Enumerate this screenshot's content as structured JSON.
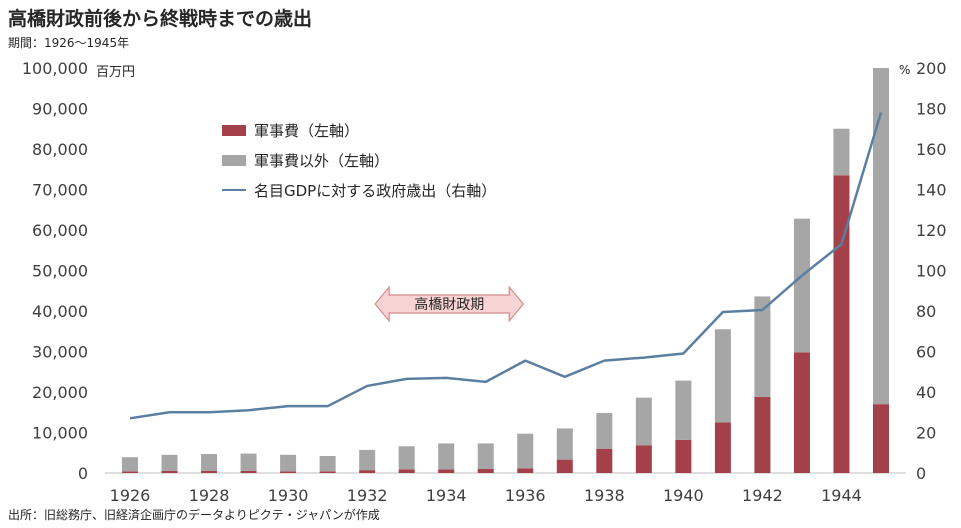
{
  "header": {
    "title": "高橋財政前後から終戦時までの歳出",
    "period": "期間：1926〜1945年"
  },
  "footer": {
    "source": "出所：旧総務庁、旧経済企画庁のデータよりピクテ・ジャパンが作成"
  },
  "colors": {
    "military": "#a4404a",
    "non_military": "#a6a6a6",
    "gdp_line": "#5b7fa1",
    "arrow_fill": "#f8d3d3",
    "arrow_stroke": "#d58a8a"
  },
  "chart_data": {
    "type": "bar",
    "stacked": true,
    "x": [
      1926,
      1927,
      1928,
      1929,
      1930,
      1931,
      1932,
      1933,
      1934,
      1935,
      1936,
      1937,
      1938,
      1939,
      1940,
      1941,
      1942,
      1943,
      1944,
      1945
    ],
    "x_tick_labels": [
      "1926",
      "1928",
      "1930",
      "1932",
      "1934",
      "1936",
      "1938",
      "1940",
      "1942",
      "1944"
    ],
    "y_left_unit": "百万円",
    "y_right_unit": "%",
    "ylim_left": [
      0,
      100000
    ],
    "ylim_right": [
      0,
      200
    ],
    "y_left_ticks": [
      "0",
      "10,000",
      "20,000",
      "30,000",
      "40,000",
      "50,000",
      "60,000",
      "70,000",
      "80,000",
      "90,000",
      "100,000"
    ],
    "y_right_ticks": [
      "0",
      "20",
      "40",
      "60",
      "80",
      "100",
      "120",
      "140",
      "160",
      "180",
      "200"
    ],
    "series": [
      {
        "name": "軍事費（左軸）",
        "kind": "bar",
        "axis": "left",
        "values": [
          400,
          500,
          500,
          500,
          400,
          400,
          700,
          900,
          900,
          1000,
          1100,
          3300,
          6000,
          6800,
          8200,
          12500,
          18800,
          29800,
          73500,
          17000
        ]
      },
      {
        "name": "軍事費以外（左軸）",
        "kind": "bar",
        "axis": "left",
        "values": [
          3500,
          4000,
          4200,
          4300,
          4100,
          3800,
          5000,
          5700,
          6400,
          6300,
          8600,
          7700,
          8800,
          11800,
          14600,
          23000,
          24800,
          33000,
          11500,
          83000
        ]
      },
      {
        "name": "名目GDPに対する政府歳出（右軸）",
        "kind": "line",
        "axis": "right",
        "values": [
          27,
          30,
          30,
          31,
          33,
          33,
          43,
          46.5,
          47,
          45,
          55.5,
          47.5,
          55.5,
          57,
          59,
          79.5,
          80.5,
          97.5,
          113,
          178
        ]
      }
    ],
    "annotation": "高橋財政期",
    "annotation_range": [
      1932,
      1936
    ],
    "legend_position": "top-left"
  }
}
